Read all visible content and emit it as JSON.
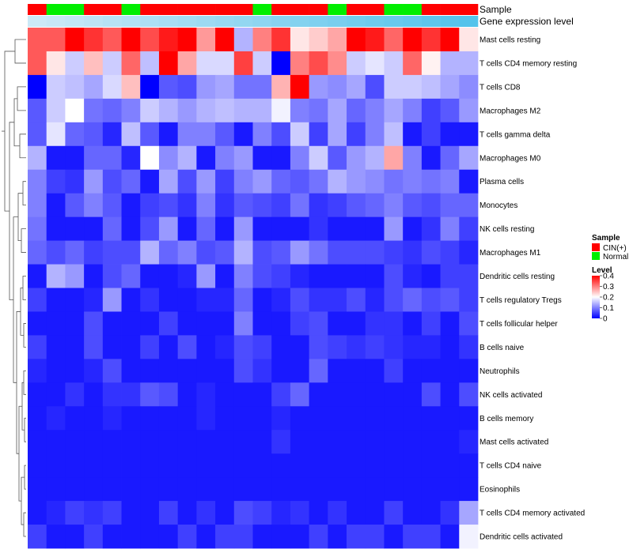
{
  "chart_data": {
    "type": "heatmap",
    "annotation_tracks": [
      "Sample",
      "Gene expression level"
    ],
    "legend": {
      "sample_title": "Sample",
      "sample_entries": [
        {
          "label": "CIN(+)",
          "color": "#ff0000"
        },
        {
          "label": "Normal",
          "color": "#00ee00"
        }
      ],
      "level_title": "Level",
      "level_ticks": [
        "0.4",
        "0.3",
        "0.2",
        "0.1",
        "0"
      ],
      "level_tick_values": [
        0.4,
        0.3,
        0.2,
        0.1,
        0
      ],
      "range": [
        0,
        0.4
      ]
    },
    "colors": {
      "low": "#0000ff",
      "mid": "#ffffff",
      "high": "#ff0000",
      "cin": "#ff0000",
      "normal": "#00ee00",
      "gene_expression_light": "#cfeaf7",
      "gene_expression_dark": "#4cc0ea"
    },
    "sample_groups": [
      "CIN(+)",
      "Normal",
      "Normal",
      "CIN(+)",
      "CIN(+)",
      "Normal",
      "CIN(+)",
      "CIN(+)",
      "CIN(+)",
      "CIN(+)",
      "CIN(+)",
      "CIN(+)",
      "Normal",
      "CIN(+)",
      "CIN(+)",
      "CIN(+)",
      "Normal",
      "CIN(+)",
      "CIN(+)",
      "Normal",
      "Normal",
      "CIN(+)",
      "CIN(+)",
      "CIN(+)"
    ],
    "gene_expression_level": [
      0.02,
      0.06,
      0.1,
      0.14,
      0.18,
      0.22,
      0.26,
      0.3,
      0.34,
      0.38,
      0.42,
      0.46,
      0.5,
      0.54,
      0.58,
      0.62,
      0.66,
      0.7,
      0.74,
      0.78,
      0.82,
      0.86,
      0.9,
      0.94
    ],
    "rows": [
      {
        "name": "Mast cells resting",
        "values": [
          0.33,
          0.33,
          0.4,
          0.36,
          0.33,
          0.4,
          0.34,
          0.38,
          0.4,
          0.28,
          0.4,
          0.14,
          0.3,
          0.36,
          0.22,
          0.24,
          0.27,
          0.4,
          0.38,
          0.32,
          0.4,
          0.36,
          0.4,
          0.22
        ]
      },
      {
        "name": "T cells CD4 memory resting",
        "values": [
          0.33,
          0.22,
          0.16,
          0.25,
          0.16,
          0.32,
          0.15,
          0.4,
          0.27,
          0.17,
          0.17,
          0.35,
          0.16,
          0.0,
          0.3,
          0.34,
          0.29,
          0.16,
          0.18,
          0.16,
          0.32,
          0.21,
          0.14,
          0.14
        ]
      },
      {
        "name": "T cells CD8",
        "values": [
          0.0,
          0.16,
          0.15,
          0.13,
          0.17,
          0.25,
          0.0,
          0.07,
          0.06,
          0.12,
          0.13,
          0.09,
          0.09,
          0.26,
          0.4,
          0.12,
          0.11,
          0.13,
          0.06,
          0.16,
          0.16,
          0.15,
          0.13,
          0.11
        ]
      },
      {
        "name": "Macrophages M2",
        "values": [
          0.07,
          0.16,
          0.2,
          0.09,
          0.08,
          0.1,
          0.16,
          0.14,
          0.12,
          0.14,
          0.15,
          0.14,
          0.14,
          0.19,
          0.1,
          0.09,
          0.13,
          0.08,
          0.1,
          0.13,
          0.1,
          0.05,
          0.07,
          0.12
        ]
      },
      {
        "name": "T cells gamma delta",
        "values": [
          0.07,
          0.18,
          0.08,
          0.07,
          0.03,
          0.15,
          0.07,
          0.02,
          0.1,
          0.1,
          0.07,
          0.02,
          0.1,
          0.06,
          0.16,
          0.05,
          0.13,
          0.05,
          0.1,
          0.15,
          0.02,
          0.05,
          0.02,
          0.02
        ]
      },
      {
        "name": "Macrophages M0",
        "values": [
          0.14,
          0.02,
          0.02,
          0.08,
          0.08,
          0.03,
          0.2,
          0.11,
          0.14,
          0.02,
          0.1,
          0.12,
          0.02,
          0.02,
          0.1,
          0.16,
          0.07,
          0.12,
          0.14,
          0.27,
          0.1,
          0.02,
          0.08,
          0.13
        ]
      },
      {
        "name": "Plasma cells",
        "values": [
          0.1,
          0.05,
          0.04,
          0.12,
          0.06,
          0.08,
          0.02,
          0.13,
          0.06,
          0.12,
          0.05,
          0.1,
          0.12,
          0.08,
          0.07,
          0.09,
          0.14,
          0.12,
          0.11,
          0.09,
          0.1,
          0.09,
          0.1,
          0.02
        ]
      },
      {
        "name": "Monocytes",
        "values": [
          0.1,
          0.02,
          0.07,
          0.1,
          0.07,
          0.02,
          0.05,
          0.06,
          0.04,
          0.1,
          0.04,
          0.07,
          0.06,
          0.05,
          0.09,
          0.04,
          0.05,
          0.07,
          0.08,
          0.1,
          0.07,
          0.06,
          0.08,
          0.08
        ]
      },
      {
        "name": "NK cells resting",
        "values": [
          0.09,
          0.02,
          0.02,
          0.02,
          0.08,
          0.02,
          0.06,
          0.12,
          0.02,
          0.08,
          0.02,
          0.12,
          0.02,
          0.02,
          0.02,
          0.04,
          0.02,
          0.02,
          0.02,
          0.12,
          0.02,
          0.04,
          0.1,
          0.05
        ]
      },
      {
        "name": "Macrophages M1",
        "values": [
          0.08,
          0.06,
          0.08,
          0.05,
          0.06,
          0.06,
          0.14,
          0.08,
          0.1,
          0.06,
          0.07,
          0.14,
          0.06,
          0.07,
          0.12,
          0.09,
          0.06,
          0.06,
          0.06,
          0.05,
          0.04,
          0.06,
          0.05,
          0.03
        ]
      },
      {
        "name": "Dendritic cells resting",
        "values": [
          0.02,
          0.14,
          0.12,
          0.02,
          0.06,
          0.08,
          0.02,
          0.02,
          0.03,
          0.12,
          0.02,
          0.1,
          0.06,
          0.05,
          0.03,
          0.02,
          0.02,
          0.02,
          0.02,
          0.06,
          0.03,
          0.02,
          0.05,
          0.05
        ]
      },
      {
        "name": "T cells regulatory  Tregs",
        "values": [
          0.05,
          0.02,
          0.02,
          0.03,
          0.12,
          0.02,
          0.04,
          0.02,
          0.02,
          0.03,
          0.03,
          0.08,
          0.02,
          0.03,
          0.06,
          0.04,
          0.04,
          0.06,
          0.03,
          0.06,
          0.08,
          0.06,
          0.07,
          0.05
        ]
      },
      {
        "name": "T cells follicular helper",
        "values": [
          0.02,
          0.02,
          0.02,
          0.06,
          0.02,
          0.02,
          0.02,
          0.05,
          0.02,
          0.02,
          0.02,
          0.1,
          0.02,
          0.02,
          0.05,
          0.06,
          0.02,
          0.02,
          0.04,
          0.04,
          0.02,
          0.05,
          0.02,
          0.06
        ]
      },
      {
        "name": "B cells naive",
        "values": [
          0.05,
          0.02,
          0.02,
          0.06,
          0.02,
          0.02,
          0.05,
          0.02,
          0.06,
          0.02,
          0.03,
          0.06,
          0.05,
          0.02,
          0.02,
          0.06,
          0.05,
          0.04,
          0.05,
          0.04,
          0.03,
          0.03,
          0.02,
          0.04
        ]
      },
      {
        "name": "Neutrophils",
        "values": [
          0.03,
          0.02,
          0.02,
          0.03,
          0.06,
          0.02,
          0.02,
          0.02,
          0.02,
          0.02,
          0.02,
          0.06,
          0.04,
          0.02,
          0.02,
          0.08,
          0.02,
          0.02,
          0.02,
          0.05,
          0.02,
          0.02,
          0.02,
          0.02
        ]
      },
      {
        "name": "NK cells activated",
        "values": [
          0.02,
          0.02,
          0.04,
          0.02,
          0.04,
          0.04,
          0.07,
          0.06,
          0.02,
          0.03,
          0.02,
          0.02,
          0.02,
          0.05,
          0.08,
          0.02,
          0.02,
          0.02,
          0.02,
          0.02,
          0.02,
          0.06,
          0.02,
          0.06
        ]
      },
      {
        "name": "B cells memory",
        "values": [
          0.02,
          0.03,
          0.02,
          0.02,
          0.03,
          0.02,
          0.02,
          0.02,
          0.02,
          0.03,
          0.02,
          0.02,
          0.02,
          0.03,
          0.02,
          0.02,
          0.02,
          0.02,
          0.02,
          0.02,
          0.02,
          0.02,
          0.02,
          0.02
        ]
      },
      {
        "name": "Mast cells activated",
        "values": [
          0.02,
          0.02,
          0.02,
          0.02,
          0.02,
          0.02,
          0.02,
          0.02,
          0.02,
          0.02,
          0.02,
          0.02,
          0.02,
          0.04,
          0.02,
          0.02,
          0.02,
          0.02,
          0.02,
          0.02,
          0.02,
          0.02,
          0.02,
          0.03
        ]
      },
      {
        "name": "T cells CD4 naive",
        "values": [
          0.02,
          0.02,
          0.02,
          0.02,
          0.02,
          0.02,
          0.02,
          0.02,
          0.02,
          0.02,
          0.02,
          0.02,
          0.02,
          0.02,
          0.02,
          0.02,
          0.02,
          0.02,
          0.02,
          0.02,
          0.02,
          0.02,
          0.02,
          0.02
        ]
      },
      {
        "name": "Eosinophils",
        "values": [
          0.02,
          0.02,
          0.02,
          0.02,
          0.02,
          0.02,
          0.02,
          0.02,
          0.02,
          0.02,
          0.02,
          0.02,
          0.02,
          0.02,
          0.02,
          0.02,
          0.02,
          0.02,
          0.02,
          0.02,
          0.02,
          0.02,
          0.02,
          0.02
        ]
      },
      {
        "name": "T cells CD4 memory activated",
        "values": [
          0.02,
          0.03,
          0.05,
          0.04,
          0.05,
          0.02,
          0.02,
          0.05,
          0.02,
          0.04,
          0.02,
          0.06,
          0.05,
          0.03,
          0.04,
          0.02,
          0.04,
          0.02,
          0.02,
          0.05,
          0.02,
          0.02,
          0.04,
          0.13
        ]
      },
      {
        "name": "Dendritic cells activated",
        "values": [
          0.05,
          0.02,
          0.02,
          0.05,
          0.02,
          0.02,
          0.02,
          0.02,
          0.05,
          0.02,
          0.05,
          0.05,
          0.02,
          0.02,
          0.02,
          0.05,
          0.02,
          0.05,
          0.05,
          0.02,
          0.05,
          0.05,
          0.02,
          0.19
        ]
      }
    ]
  }
}
